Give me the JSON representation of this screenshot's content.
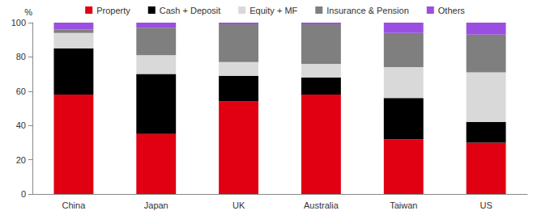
{
  "chart_data": {
    "type": "bar",
    "stacked": true,
    "grid": false,
    "legend": "top",
    "ylabel": "%",
    "categories": [
      "China",
      "Japan",
      "UK",
      "Australia",
      "Taiwan",
      "US"
    ],
    "ylim": [
      0,
      100
    ],
    "yticks": [
      0,
      20,
      40,
      60,
      80,
      100
    ],
    "series": [
      {
        "name": "Property",
        "color": "#e00012",
        "values": [
          58,
          35,
          54,
          58,
          32,
          30
        ]
      },
      {
        "name": "Cash + Deposit",
        "color": "#000000",
        "values": [
          27,
          35,
          15,
          10,
          24,
          12
        ]
      },
      {
        "name": "Equity + MF",
        "color": "#d9d9d9",
        "values": [
          9,
          11,
          8,
          8,
          18,
          29
        ]
      },
      {
        "name": "Insurance & Pension",
        "color": "#7f7f7f",
        "values": [
          2,
          16,
          22,
          23,
          20,
          22
        ]
      },
      {
        "name": "Others",
        "color": "#9b4fe0",
        "values": [
          4,
          3,
          1,
          1,
          6,
          7
        ]
      }
    ]
  }
}
